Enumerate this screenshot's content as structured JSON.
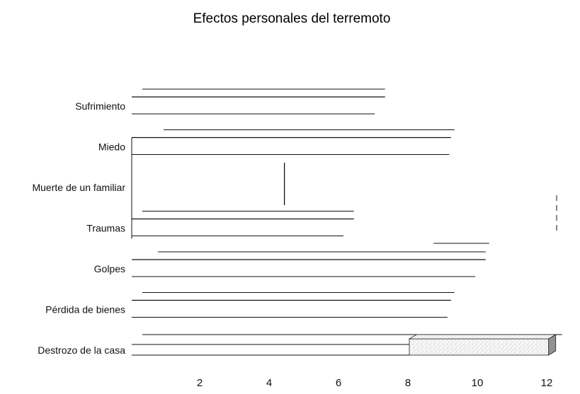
{
  "chart_data": {
    "type": "bar",
    "title": "Efectos personales del terremoto",
    "xlabel": "",
    "ylabel": "",
    "xlim": [
      0,
      12.3
    ],
    "xticks": [
      2,
      4,
      6,
      8,
      10,
      12
    ],
    "xtick_labels": [
      "2",
      "4",
      "6",
      "8",
      "10",
      "12"
    ],
    "categories": [
      "Sufrimiento",
      "Miedo",
      "Muerte de un familiar",
      "Traumas",
      "Golpes",
      "Pérdida de bienes",
      "Destrozo de la casa"
    ],
    "values": [
      7.3,
      9.3,
      4.4,
      6.4,
      10.2,
      9.3,
      12.3
    ],
    "colors": {
      "line": "#111111",
      "box_face": "#f4f4f4",
      "box_edge": "#222222",
      "box_dark": "#777777"
    }
  }
}
